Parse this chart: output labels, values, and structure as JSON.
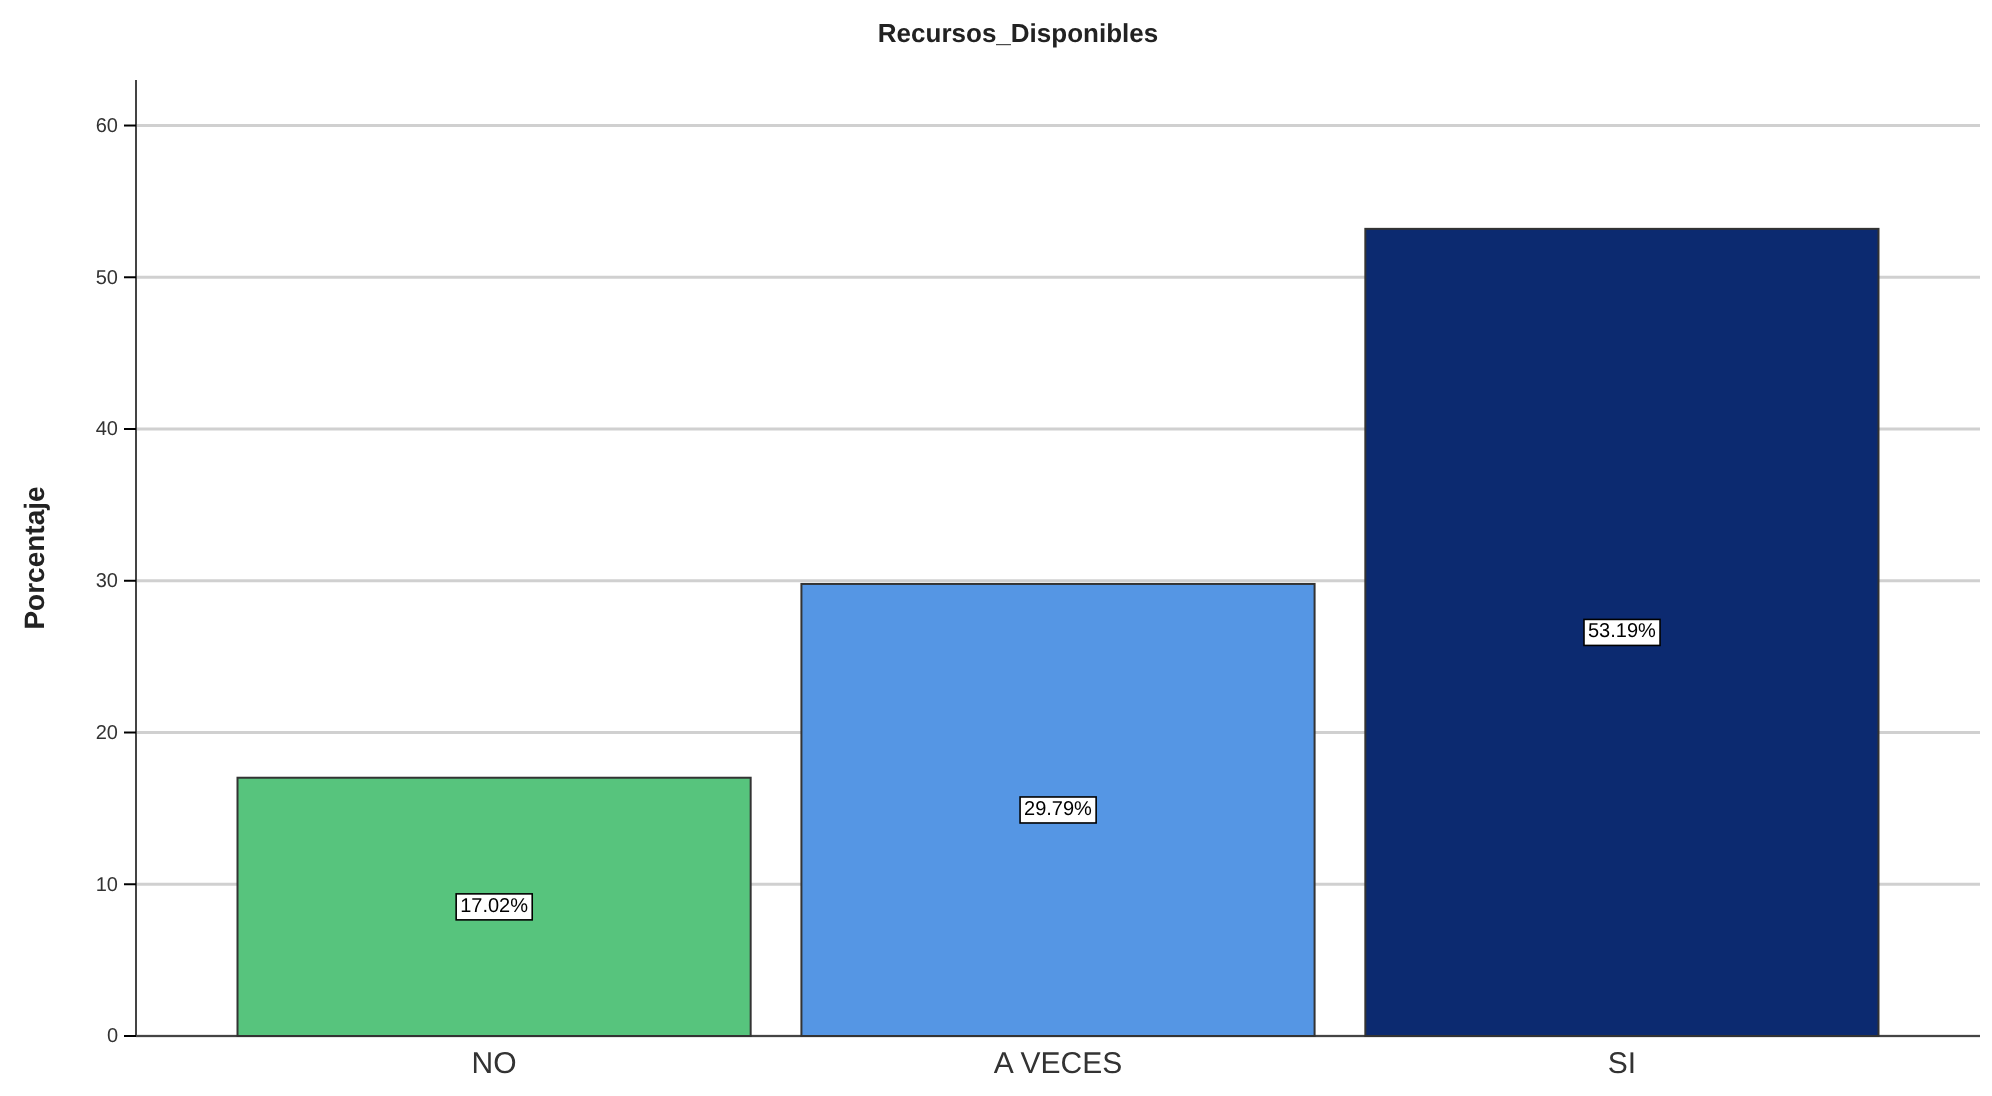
{
  "chart_data": {
    "type": "bar",
    "title": "Recursos_Disponibles",
    "ylabel": "Porcentaje",
    "categories": [
      "NO",
      "A VECES",
      "SI"
    ],
    "values": [
      17.02,
      29.79,
      53.19
    ],
    "colors": [
      "#57c47d",
      "#5596e4",
      "#0c2a70"
    ],
    "value_labels": [
      "17.02%",
      "29.79%",
      "53.19%"
    ],
    "ylim": [
      0,
      63
    ],
    "yticks": [
      0,
      10,
      20,
      30,
      40,
      50,
      60
    ],
    "grid": "y"
  }
}
